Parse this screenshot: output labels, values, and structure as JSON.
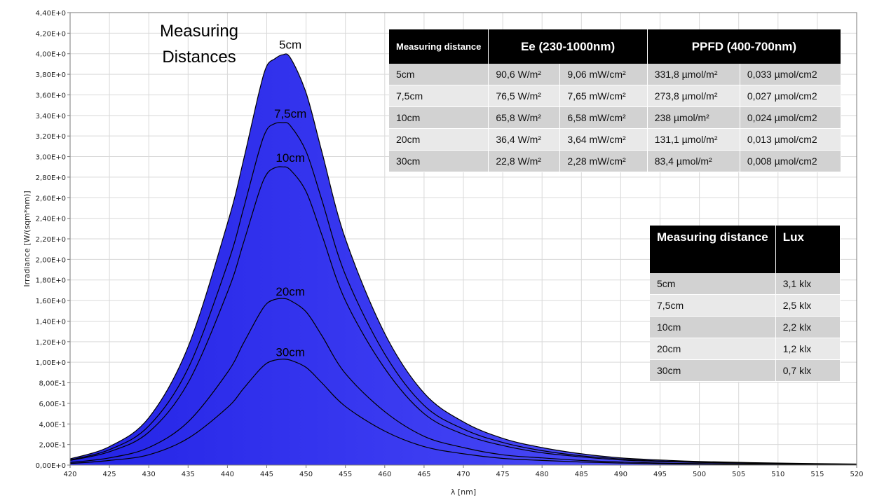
{
  "colors": {
    "fill_light": "#5b5bff",
    "fill_dark": "#2323e6",
    "curve": "#000000",
    "grid": "#d9d9d9",
    "axis": "#7a7a7a"
  },
  "annotation": {
    "line1": "Measuring",
    "line2": "Distances"
  },
  "chart_data": {
    "type": "area",
    "title": "",
    "xlabel": "λ [nm]",
    "ylabel": "Irradiance [W/(sqm*nm)]",
    "xlim": [
      420,
      520
    ],
    "ylim": [
      0,
      4.4
    ],
    "grid": true,
    "x_ticks": [
      "420",
      "425",
      "430",
      "435",
      "440",
      "445",
      "450",
      "455",
      "460",
      "465",
      "470",
      "475",
      "480",
      "485",
      "490",
      "495",
      "500",
      "505",
      "510",
      "515",
      "520"
    ],
    "y_ticks": [
      "0,00E+0",
      "2,00E-1",
      "4,00E-1",
      "6,00E-1",
      "8,00E-1",
      "1,00E+0",
      "1,20E+0",
      "1,40E+0",
      "1,60E+0",
      "1,80E+0",
      "2,00E+0",
      "2,20E+0",
      "2,40E+0",
      "2,60E+0",
      "2,80E+0",
      "3,00E+0",
      "3,20E+0",
      "3,40E+0",
      "3,60E+0",
      "3,80E+0",
      "4,00E+0",
      "4,20E+0",
      "4,40E+0"
    ],
    "x": [
      420,
      425,
      430,
      435,
      440,
      442,
      444,
      445,
      446,
      447,
      448,
      450,
      452,
      455,
      460,
      465,
      470,
      475,
      480,
      485,
      490,
      495,
      500,
      510,
      520
    ],
    "series": [
      {
        "name": "5cm",
        "label_pos": [
          448,
          4.05
        ],
        "values": [
          0.06,
          0.18,
          0.46,
          1.15,
          2.35,
          2.95,
          3.62,
          3.88,
          3.95,
          3.99,
          3.96,
          3.62,
          3.05,
          2.2,
          1.28,
          0.7,
          0.42,
          0.26,
          0.17,
          0.11,
          0.07,
          0.05,
          0.035,
          0.02,
          0.01
        ]
      },
      {
        "name": "7,5cm",
        "label_pos": [
          448,
          3.38
        ],
        "values": [
          0.05,
          0.15,
          0.38,
          0.94,
          1.95,
          2.48,
          3.05,
          3.26,
          3.32,
          3.33,
          3.3,
          3.05,
          2.58,
          1.85,
          1.08,
          0.58,
          0.35,
          0.22,
          0.14,
          0.09,
          0.06,
          0.04,
          0.03,
          0.017,
          0.008
        ]
      },
      {
        "name": "10cm",
        "label_pos": [
          448,
          2.95
        ],
        "values": [
          0.045,
          0.13,
          0.32,
          0.8,
          1.68,
          2.15,
          2.65,
          2.83,
          2.89,
          2.9,
          2.87,
          2.66,
          2.24,
          1.6,
          0.94,
          0.5,
          0.3,
          0.19,
          0.12,
          0.08,
          0.05,
          0.035,
          0.025,
          0.015,
          0.007
        ]
      },
      {
        "name": "20cm",
        "label_pos": [
          448,
          1.65
        ],
        "values": [
          0.025,
          0.07,
          0.17,
          0.42,
          0.9,
          1.18,
          1.46,
          1.57,
          1.61,
          1.62,
          1.6,
          1.49,
          1.26,
          0.89,
          0.52,
          0.28,
          0.17,
          0.1,
          0.07,
          0.045,
          0.03,
          0.02,
          0.014,
          0.008,
          0.004
        ]
      },
      {
        "name": "30cm",
        "label_pos": [
          448,
          1.06
        ],
        "values": [
          0.015,
          0.045,
          0.1,
          0.26,
          0.56,
          0.74,
          0.92,
          0.99,
          1.02,
          1.03,
          1.02,
          0.95,
          0.8,
          0.57,
          0.33,
          0.18,
          0.11,
          0.065,
          0.045,
          0.03,
          0.02,
          0.013,
          0.009,
          0.005,
          0.003
        ]
      }
    ]
  },
  "table_main": {
    "headers": [
      "Measuring distance",
      "Ee  (230-1000nm)",
      "PPFD (400-700nm)"
    ],
    "rows": [
      [
        "5cm",
        "90,6 W/m²",
        "9,06 mW/cm²",
        "331,8 µmol/m²",
        "0,033 µmol/cm2"
      ],
      [
        "7,5cm",
        "76,5 W/m²",
        "7,65 mW/cm²",
        "273,8 µmol/m²",
        "0,027 µmol/cm2"
      ],
      [
        "10cm",
        "65,8 W/m²",
        "6,58 mW/cm²",
        "238 µmol/m²",
        "0,024 µmol/cm2"
      ],
      [
        "20cm",
        "36,4 W/m²",
        "3,64 mW/cm²",
        "131,1 µmol/m²",
        "0,013 µmol/cm2"
      ],
      [
        "30cm",
        "22,8 W/m²",
        "2,28 mW/cm²",
        "83,4 µmol/m²",
        "0,008 µmol/cm2"
      ]
    ]
  },
  "table_lux": {
    "headers": [
      "Measuring distance",
      "Lux"
    ],
    "rows": [
      [
        "5cm",
        "3,1 klx"
      ],
      [
        "7,5cm",
        "2,5 klx"
      ],
      [
        "10cm",
        "2,2 klx"
      ],
      [
        "20cm",
        "1,2 klx"
      ],
      [
        "30cm",
        "0,7 klx"
      ]
    ]
  }
}
